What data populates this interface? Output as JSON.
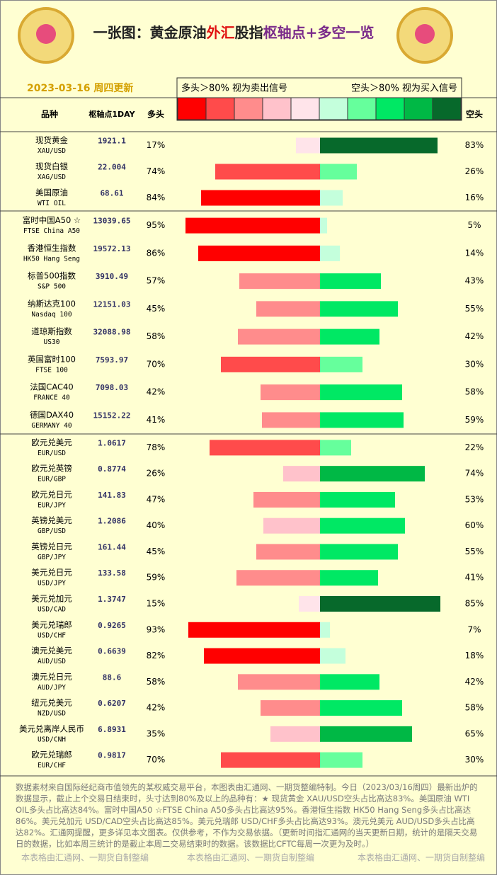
{
  "chart_data": {
    "type": "diverging-bar",
    "title_parts": [
      "一张图：黄金原油",
      "外汇",
      "股指",
      "枢轴点+多空一览"
    ],
    "date": "2023-03-16 周四更新",
    "legend_texts": [
      "多头＞80% 视为卖出信号",
      "空头＞80% 视为买入信号"
    ],
    "scale_colors": [
      "#ff0000",
      "#ff4b4b",
      "#ff8c8c",
      "#ffc2cb",
      "#ffe4ea",
      "#c4ffdc",
      "#66ff9c",
      "#00e864",
      "#00b845",
      "#07692b"
    ],
    "column_headers": [
      "品种",
      "枢轴点1DAY"
    ],
    "categories": [
      "现货黄金",
      "现货白银",
      "美国原油",
      "富时中国A50 ☆",
      "香港恒生指数",
      "标普500指数",
      "纳斯达克100",
      "道琼斯指数",
      "英国富时100",
      "法国CAC40",
      "德国DAX40",
      "欧元兑美元",
      "欧元兑英镑",
      "欧元兑日元",
      "英镑兑美元",
      "英镑兑日元",
      "美元兑日元",
      "美元兑加元",
      "美元兑瑞郎",
      "澳元兑美元",
      "澳元兑日元",
      "纽元兑美元",
      "美元兑离岸人民币",
      "欧元兑瑞郎"
    ],
    "codes": [
      "XAU/USD",
      "XAG/USD",
      "WTI OIL",
      "FTSE China A50",
      "HK50 Hang Seng",
      "S&P 500",
      "Nasdaq 100",
      "US30",
      "FTSE 100",
      "FRANCE 40",
      "GERMANY 40",
      "EUR/USD",
      "EUR/GBP",
      "EUR/JPY",
      "GBP/USD",
      "GBP/JPY",
      "USD/JPY",
      "USD/CAD",
      "USD/CHF",
      "AUD/USD",
      "AUD/JPY",
      "NZD/USD",
      "USD/CNH",
      "EUR/CHF"
    ],
    "pivots": [
      1921.1,
      22.004,
      68.61,
      13039.65,
      19572.13,
      3910.49,
      12151.03,
      32088.98,
      7593.97,
      7098.03,
      15152.22,
      1.0617,
      0.8774,
      141.83,
      1.2086,
      161.44,
      133.58,
      1.3747,
      0.9265,
      0.6639,
      88.6,
      0.6207,
      6.8931,
      0.9817
    ],
    "series": [
      {
        "name": "多头",
        "values": [
          17,
          74,
          84,
          95,
          86,
          57,
          45,
          58,
          70,
          42,
          41,
          78,
          26,
          47,
          40,
          45,
          59,
          15,
          93,
          82,
          58,
          42,
          35,
          70
        ],
        "value_labels": [
          "17%",
          "74%",
          "84%",
          "95%",
          "86%",
          "57%",
          "45%",
          "58%",
          "70%",
          "42%",
          "41%",
          "78%",
          "26%",
          "47%",
          "40%",
          "45%",
          "59%",
          "15%",
          "93%",
          "82%",
          "58%",
          "42%",
          "35%",
          "70%"
        ]
      },
      {
        "name": "空头",
        "values": [
          83,
          26,
          16,
          5,
          14,
          43,
          55,
          42,
          30,
          58,
          59,
          22,
          74,
          53,
          60,
          55,
          41,
          85,
          7,
          18,
          42,
          58,
          65,
          30
        ],
        "value_labels": [
          "83%",
          "26%",
          "16%",
          "5%",
          "14%",
          "43%",
          "55%",
          "42%",
          "30%",
          "58%",
          "59%",
          "22%",
          "74%",
          "53%",
          "60%",
          "55%",
          "41%",
          "85%",
          "7%",
          "18%",
          "42%",
          "58%",
          "65%",
          "30%"
        ]
      }
    ],
    "footnote": "数据素材来自国际经纪商市值领先的某权威交易平台，本图表由汇通网、一期货整编特制。今日（2023/03/16周四）最新出炉的数据显示，截止上个交易日结束时，头寸达到80%及以上的品种有：★ 现货黄金 XAU/USD空头占比高达83%。美国原油 WTI OIL多头占比高达84%。富时中国A50 ☆FTSE China A50多头占比高达95%。香港恒生指数 HK50 Hang Seng多头占比高达86%。美元兑加元 USD/CAD空头占比高达85%。美元兑瑞郎 USD/CHF多头占比高达93%。澳元兑美元 AUD/USD多头占比高达82%。汇通网提醒，更多详见本文图表。仅供参考，不作为交易依据。（更新时间指汇通网的当天更新日期，统计的是隔天交易日的数据，比如本周三统计的是截止本周二交易结束时的数据。该数据比CFTC每周一次更为及时。）",
    "watermark": "本表格由汇通网、一期货自制整编"
  }
}
